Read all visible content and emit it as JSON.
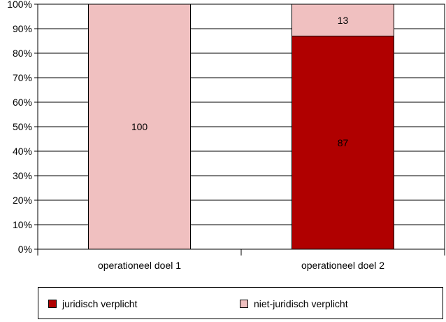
{
  "chart_data": {
    "type": "bar",
    "stacked": true,
    "normalized_percent": true,
    "categories": [
      "operationeel doel 1",
      "operationeel doel 2"
    ],
    "series": [
      {
        "name": "juridisch verplicht",
        "color": "#b00000",
        "values": [
          0,
          87
        ]
      },
      {
        "name": "niet-juridisch verplicht",
        "color": "#f0c0c0",
        "values": [
          100,
          13
        ]
      }
    ],
    "y_ticks": [
      "0%",
      "10%",
      "20%",
      "30%",
      "40%",
      "50%",
      "60%",
      "70%",
      "80%",
      "90%",
      "100%"
    ],
    "ylim": [
      0,
      100
    ],
    "grid": true,
    "legend_position": "bottom"
  }
}
